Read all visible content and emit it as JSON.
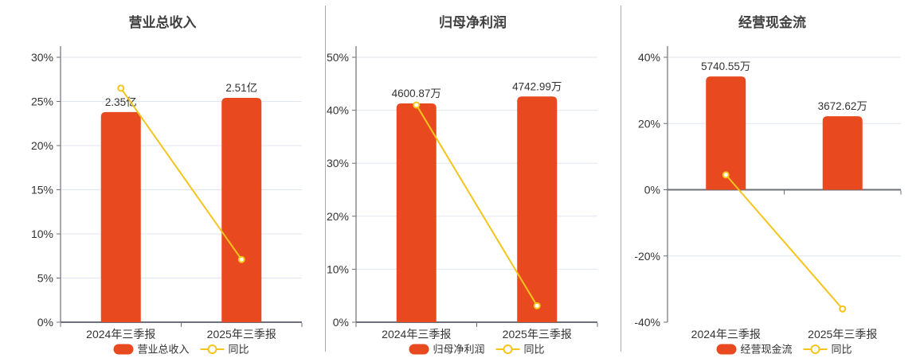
{
  "colors": {
    "bar": "#E8491E",
    "line": "#F5C41D",
    "grid": "#E0E6F1",
    "axis": "#6E7079",
    "text": "#333333",
    "title": "#404040",
    "divider": "#A9A9A9",
    "marker_fill": "#FFFFFF",
    "background": "#FFFFFF"
  },
  "chart_data": [
    {
      "type": "bar",
      "title": "营业总收入",
      "categories": [
        "2024年三季报",
        "2025年三季报"
      ],
      "bar_series": {
        "name": "营业总收入",
        "value_labels": [
          "2.35亿",
          "2.51亿"
        ],
        "plotted_axis_pct": [
          23.8,
          25.4
        ]
      },
      "line_series": {
        "name": "同比",
        "values_pct": [
          26.5,
          7.1
        ]
      },
      "y_axis": {
        "min": 0,
        "max": 30,
        "step": 5,
        "tick_labels": [
          "0%",
          "5%",
          "10%",
          "15%",
          "20%",
          "25%",
          "30%"
        ]
      },
      "grid": true,
      "legend_position": "bottom"
    },
    {
      "type": "bar",
      "title": "归母净利润",
      "categories": [
        "2024年三季报",
        "2025年三季报"
      ],
      "bar_series": {
        "name": "归母净利润",
        "value_labels": [
          "4600.87万",
          "4742.99万"
        ],
        "plotted_axis_pct": [
          41.3,
          42.6
        ]
      },
      "line_series": {
        "name": "同比",
        "values_pct": [
          41.0,
          3.1
        ]
      },
      "y_axis": {
        "min": 0,
        "max": 50,
        "step": 10,
        "tick_labels": [
          "0%",
          "10%",
          "20%",
          "30%",
          "40%",
          "50%"
        ]
      },
      "grid": true,
      "legend_position": "bottom"
    },
    {
      "type": "bar",
      "title": "经营现金流",
      "categories": [
        "2024年三季报",
        "2025年三季报"
      ],
      "bar_series": {
        "name": "经营现金流",
        "value_labels": [
          "5740.55万",
          "3672.62万"
        ],
        "plotted_axis_pct": [
          34.2,
          22.2
        ]
      },
      "line_series": {
        "name": "同比",
        "values_pct": [
          4.5,
          -36.0
        ]
      },
      "y_axis": {
        "min": -40,
        "max": 40,
        "step": 20,
        "tick_labels": [
          "-40%",
          "-20%",
          "0%",
          "20%",
          "40%"
        ]
      },
      "grid": true,
      "legend_position": "bottom"
    }
  ]
}
